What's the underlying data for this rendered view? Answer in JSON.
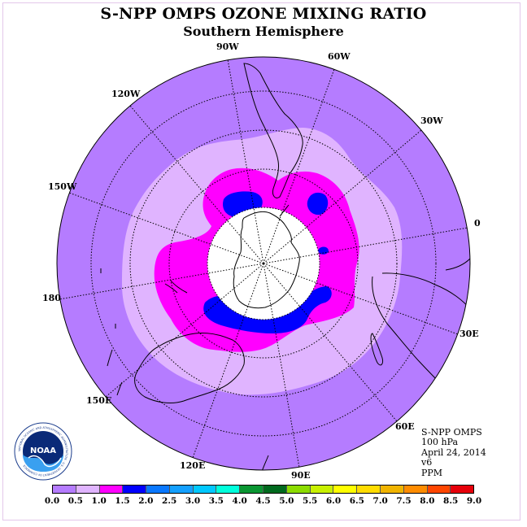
{
  "title": "S-NPP OMPS OZONE MIXING RATIO",
  "subtitle": "Southern Hemisphere",
  "longitude_labels": [
    "90W",
    "60W",
    "30W",
    "0",
    "30E",
    "60E",
    "90E",
    "120E",
    "150E",
    "180",
    "150W",
    "120W"
  ],
  "info": {
    "instrument": "S-NPP OMPS",
    "level": "100 hPa",
    "date": "April 24, 2014",
    "version": "v6",
    "units": "PPM"
  },
  "logo": {
    "text": "NOAA",
    "ring_text": "NATIONAL OCEANIC AND ATMOSPHERIC ADMINISTRATION · U.S. DEPARTMENT OF COMMERCE",
    "icon": "noaa-logo-icon"
  },
  "colorbar": {
    "ticks": [
      "0.0",
      "0.5",
      "1.0",
      "1.5",
      "2.0",
      "2.5",
      "3.0",
      "3.5",
      "4.0",
      "4.5",
      "5.0",
      "5.5",
      "6.0",
      "6.5",
      "7.0",
      "7.5",
      "8.0",
      "8.5",
      "9.0"
    ],
    "colors": [
      "#b57cff",
      "#e0b4ff",
      "#ff00ff",
      "#0000ff",
      "#0a78ff",
      "#14a0ff",
      "#00c8ff",
      "#00ffdc",
      "#0a9632",
      "#006a1e",
      "#8cdc00",
      "#c8f000",
      "#ffff00",
      "#ffdc00",
      "#f0b400",
      "#ff8c00",
      "#ff4600",
      "#e6000a",
      "#8c5a3c"
    ]
  },
  "map_colors": {
    "outer": "#b57cff",
    "band_0_5_1_0": "#e0b4ff",
    "band_1_0_1_5": "#ff00ff",
    "band_1_5_2_0": "#0000ff",
    "missing_center": "#ffffff"
  }
}
